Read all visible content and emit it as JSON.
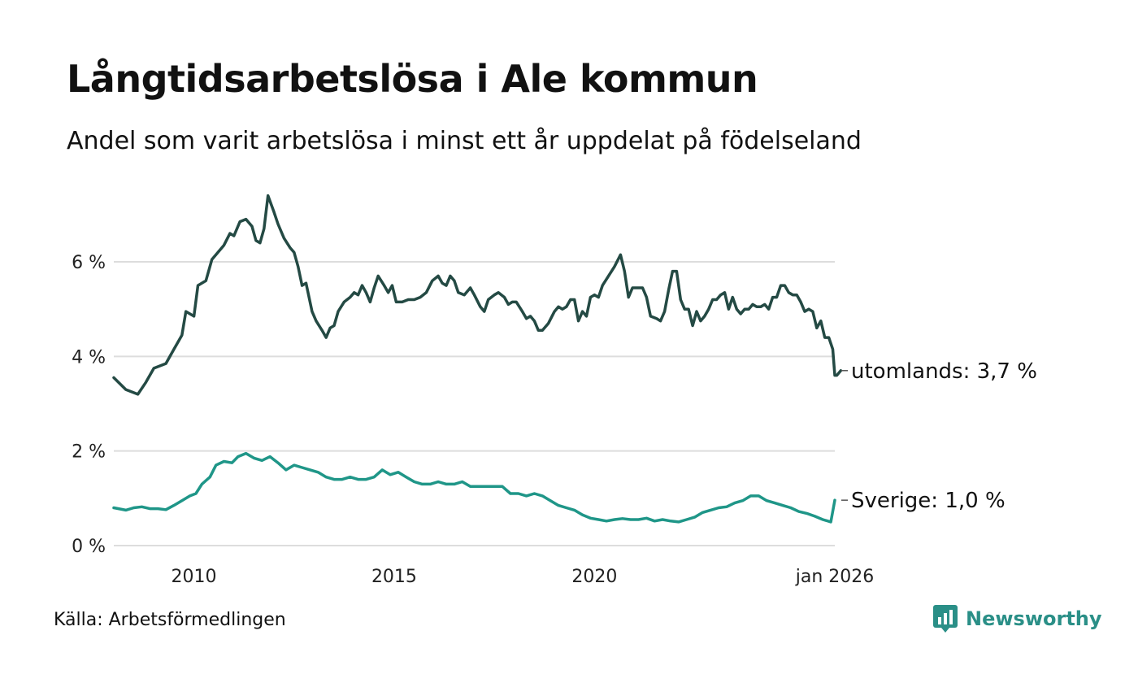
{
  "title": "Långtidsarbetslösa i Ale kommun",
  "subtitle": "Andel som varit arbetslösa i minst ett år uppdelat på födelseland",
  "source": "Källa: Arbetsförmedlingen",
  "brand": {
    "name": "Newsworthy",
    "icon": "newsworthy-logo-icon",
    "color": "#2a8f87"
  },
  "chart_data": {
    "type": "line",
    "title": "Långtidsarbetslösa i Ale kommun",
    "xlabel": "",
    "ylabel": "",
    "ylim": [
      0,
      7.5
    ],
    "xlim": [
      2008.0,
      2026.0
    ],
    "grid": true,
    "y_ticks": [
      {
        "value": 0,
        "label": "0 %"
      },
      {
        "value": 2,
        "label": "2 %"
      },
      {
        "value": 4,
        "label": "4 %"
      },
      {
        "value": 6,
        "label": "6 %"
      }
    ],
    "x_ticks": [
      {
        "value": 2010,
        "label": "2010"
      },
      {
        "value": 2015,
        "label": "2015"
      },
      {
        "value": 2020,
        "label": "2020"
      },
      {
        "value": 2026,
        "label": "jan 2026"
      }
    ],
    "series": [
      {
        "name": "utomlands",
        "end_label": "utomlands: 3,7 %",
        "color": "#244a44",
        "points": [
          [
            2008.0,
            3.55
          ],
          [
            2008.3,
            3.3
          ],
          [
            2008.45,
            3.25
          ],
          [
            2008.6,
            3.2
          ],
          [
            2008.8,
            3.45
          ],
          [
            2009.0,
            3.75
          ],
          [
            2009.3,
            3.85
          ],
          [
            2009.5,
            4.15
          ],
          [
            2009.7,
            4.45
          ],
          [
            2009.8,
            4.95
          ],
          [
            2010.0,
            4.85
          ],
          [
            2010.1,
            5.5
          ],
          [
            2010.3,
            5.6
          ],
          [
            2010.45,
            6.05
          ],
          [
            2010.6,
            6.2
          ],
          [
            2010.75,
            6.35
          ],
          [
            2010.9,
            6.6
          ],
          [
            2011.0,
            6.55
          ],
          [
            2011.15,
            6.85
          ],
          [
            2011.3,
            6.9
          ],
          [
            2011.45,
            6.75
          ],
          [
            2011.55,
            6.45
          ],
          [
            2011.65,
            6.4
          ],
          [
            2011.75,
            6.7
          ],
          [
            2011.85,
            7.4
          ],
          [
            2012.0,
            7.05
          ],
          [
            2012.1,
            6.8
          ],
          [
            2012.25,
            6.5
          ],
          [
            2012.4,
            6.3
          ],
          [
            2012.5,
            6.2
          ],
          [
            2012.6,
            5.9
          ],
          [
            2012.7,
            5.5
          ],
          [
            2012.8,
            5.55
          ],
          [
            2012.95,
            4.95
          ],
          [
            2013.05,
            4.75
          ],
          [
            2013.2,
            4.55
          ],
          [
            2013.3,
            4.4
          ],
          [
            2013.4,
            4.6
          ],
          [
            2013.5,
            4.65
          ],
          [
            2013.6,
            4.95
          ],
          [
            2013.75,
            5.15
          ],
          [
            2013.9,
            5.25
          ],
          [
            2014.0,
            5.35
          ],
          [
            2014.1,
            5.3
          ],
          [
            2014.2,
            5.5
          ],
          [
            2014.3,
            5.35
          ],
          [
            2014.4,
            5.15
          ],
          [
            2014.5,
            5.45
          ],
          [
            2014.6,
            5.7
          ],
          [
            2014.75,
            5.5
          ],
          [
            2014.85,
            5.35
          ],
          [
            2014.95,
            5.5
          ],
          [
            2015.05,
            5.15
          ],
          [
            2015.2,
            5.15
          ],
          [
            2015.35,
            5.2
          ],
          [
            2015.5,
            5.2
          ],
          [
            2015.65,
            5.25
          ],
          [
            2015.8,
            5.35
          ],
          [
            2015.95,
            5.6
          ],
          [
            2016.1,
            5.7
          ],
          [
            2016.2,
            5.55
          ],
          [
            2016.3,
            5.5
          ],
          [
            2016.4,
            5.7
          ],
          [
            2016.5,
            5.6
          ],
          [
            2016.6,
            5.35
          ],
          [
            2016.75,
            5.3
          ],
          [
            2016.9,
            5.45
          ],
          [
            2017.0,
            5.3
          ],
          [
            2017.15,
            5.05
          ],
          [
            2017.25,
            4.95
          ],
          [
            2017.35,
            5.2
          ],
          [
            2017.5,
            5.3
          ],
          [
            2017.6,
            5.35
          ],
          [
            2017.75,
            5.25
          ],
          [
            2017.85,
            5.1
          ],
          [
            2017.95,
            5.15
          ],
          [
            2018.05,
            5.15
          ],
          [
            2018.2,
            4.95
          ],
          [
            2018.3,
            4.8
          ],
          [
            2018.4,
            4.85
          ],
          [
            2018.5,
            4.75
          ],
          [
            2018.6,
            4.55
          ],
          [
            2018.7,
            4.55
          ],
          [
            2018.85,
            4.7
          ],
          [
            2019.0,
            4.95
          ],
          [
            2019.1,
            5.05
          ],
          [
            2019.2,
            5.0
          ],
          [
            2019.3,
            5.05
          ],
          [
            2019.4,
            5.2
          ],
          [
            2019.5,
            5.2
          ],
          [
            2019.6,
            4.75
          ],
          [
            2019.7,
            4.95
          ],
          [
            2019.8,
            4.85
          ],
          [
            2019.9,
            5.25
          ],
          [
            2020.0,
            5.3
          ],
          [
            2020.1,
            5.25
          ],
          [
            2020.2,
            5.5
          ],
          [
            2020.35,
            5.7
          ],
          [
            2020.5,
            5.9
          ],
          [
            2020.65,
            6.15
          ],
          [
            2020.75,
            5.8
          ],
          [
            2020.85,
            5.25
          ],
          [
            2020.95,
            5.45
          ],
          [
            2021.1,
            5.45
          ],
          [
            2021.2,
            5.45
          ],
          [
            2021.3,
            5.25
          ],
          [
            2021.4,
            4.85
          ],
          [
            2021.55,
            4.8
          ],
          [
            2021.65,
            4.75
          ],
          [
            2021.75,
            4.95
          ],
          [
            2021.85,
            5.4
          ],
          [
            2021.95,
            5.8
          ],
          [
            2022.05,
            5.8
          ],
          [
            2022.15,
            5.2
          ],
          [
            2022.25,
            5.0
          ],
          [
            2022.35,
            5.0
          ],
          [
            2022.45,
            4.65
          ],
          [
            2022.55,
            4.95
          ],
          [
            2022.65,
            4.75
          ],
          [
            2022.75,
            4.85
          ],
          [
            2022.85,
            5.0
          ],
          [
            2022.95,
            5.2
          ],
          [
            2023.05,
            5.2
          ],
          [
            2023.15,
            5.3
          ],
          [
            2023.25,
            5.35
          ],
          [
            2023.35,
            5.0
          ],
          [
            2023.45,
            5.25
          ],
          [
            2023.55,
            5.0
          ],
          [
            2023.65,
            4.9
          ],
          [
            2023.75,
            5.0
          ],
          [
            2023.85,
            5.0
          ],
          [
            2023.95,
            5.1
          ],
          [
            2024.05,
            5.05
          ],
          [
            2024.15,
            5.05
          ],
          [
            2024.25,
            5.1
          ],
          [
            2024.35,
            5.0
          ],
          [
            2024.45,
            5.25
          ],
          [
            2024.55,
            5.25
          ],
          [
            2024.65,
            5.5
          ],
          [
            2024.75,
            5.5
          ],
          [
            2024.85,
            5.35
          ],
          [
            2024.95,
            5.3
          ],
          [
            2025.05,
            5.3
          ],
          [
            2025.15,
            5.15
          ],
          [
            2025.25,
            4.95
          ],
          [
            2025.35,
            5.0
          ],
          [
            2025.45,
            4.95
          ],
          [
            2025.55,
            4.6
          ],
          [
            2025.65,
            4.75
          ],
          [
            2025.75,
            4.4
          ],
          [
            2025.85,
            4.4
          ],
          [
            2025.95,
            4.15
          ],
          [
            2026.0,
            3.6
          ],
          [
            2026.05,
            3.6
          ],
          [
            2026.15,
            3.7
          ]
        ]
      },
      {
        "name": "Sverige",
        "end_label": "Sverige: 1,0 %",
        "color": "#1f9688",
        "points": [
          [
            2008.0,
            0.8
          ],
          [
            2008.3,
            0.75
          ],
          [
            2008.5,
            0.8
          ],
          [
            2008.7,
            0.82
          ],
          [
            2008.9,
            0.78
          ],
          [
            2009.1,
            0.78
          ],
          [
            2009.3,
            0.76
          ],
          [
            2009.5,
            0.85
          ],
          [
            2009.7,
            0.95
          ],
          [
            2009.9,
            1.05
          ],
          [
            2010.05,
            1.1
          ],
          [
            2010.2,
            1.3
          ],
          [
            2010.4,
            1.45
          ],
          [
            2010.55,
            1.7
          ],
          [
            2010.75,
            1.78
          ],
          [
            2010.95,
            1.75
          ],
          [
            2011.1,
            1.88
          ],
          [
            2011.3,
            1.95
          ],
          [
            2011.5,
            1.85
          ],
          [
            2011.7,
            1.8
          ],
          [
            2011.9,
            1.88
          ],
          [
            2012.1,
            1.75
          ],
          [
            2012.3,
            1.6
          ],
          [
            2012.5,
            1.7
          ],
          [
            2012.7,
            1.65
          ],
          [
            2012.9,
            1.6
          ],
          [
            2013.1,
            1.55
          ],
          [
            2013.3,
            1.45
          ],
          [
            2013.5,
            1.4
          ],
          [
            2013.7,
            1.4
          ],
          [
            2013.9,
            1.45
          ],
          [
            2014.1,
            1.4
          ],
          [
            2014.3,
            1.4
          ],
          [
            2014.5,
            1.45
          ],
          [
            2014.7,
            1.6
          ],
          [
            2014.9,
            1.5
          ],
          [
            2015.1,
            1.55
          ],
          [
            2015.3,
            1.45
          ],
          [
            2015.5,
            1.35
          ],
          [
            2015.7,
            1.3
          ],
          [
            2015.9,
            1.3
          ],
          [
            2016.1,
            1.35
          ],
          [
            2016.3,
            1.3
          ],
          [
            2016.5,
            1.3
          ],
          [
            2016.7,
            1.35
          ],
          [
            2016.9,
            1.25
          ],
          [
            2017.1,
            1.25
          ],
          [
            2017.3,
            1.25
          ],
          [
            2017.5,
            1.25
          ],
          [
            2017.7,
            1.25
          ],
          [
            2017.9,
            1.1
          ],
          [
            2018.1,
            1.1
          ],
          [
            2018.3,
            1.05
          ],
          [
            2018.5,
            1.1
          ],
          [
            2018.7,
            1.05
          ],
          [
            2018.9,
            0.95
          ],
          [
            2019.1,
            0.85
          ],
          [
            2019.3,
            0.8
          ],
          [
            2019.5,
            0.75
          ],
          [
            2019.7,
            0.65
          ],
          [
            2019.9,
            0.58
          ],
          [
            2020.1,
            0.55
          ],
          [
            2020.3,
            0.52
          ],
          [
            2020.5,
            0.55
          ],
          [
            2020.7,
            0.57
          ],
          [
            2020.9,
            0.55
          ],
          [
            2021.1,
            0.55
          ],
          [
            2021.3,
            0.58
          ],
          [
            2021.5,
            0.52
          ],
          [
            2021.7,
            0.55
          ],
          [
            2021.9,
            0.52
          ],
          [
            2022.1,
            0.5
          ],
          [
            2022.3,
            0.55
          ],
          [
            2022.5,
            0.6
          ],
          [
            2022.7,
            0.7
          ],
          [
            2022.9,
            0.75
          ],
          [
            2023.1,
            0.8
          ],
          [
            2023.3,
            0.82
          ],
          [
            2023.5,
            0.9
          ],
          [
            2023.7,
            0.95
          ],
          [
            2023.9,
            1.05
          ],
          [
            2024.1,
            1.05
          ],
          [
            2024.3,
            0.95
          ],
          [
            2024.5,
            0.9
          ],
          [
            2024.7,
            0.85
          ],
          [
            2024.9,
            0.8
          ],
          [
            2025.1,
            0.72
          ],
          [
            2025.3,
            0.68
          ],
          [
            2025.5,
            0.62
          ],
          [
            2025.7,
            0.55
          ],
          [
            2025.9,
            0.5
          ],
          [
            2026.0,
            0.96
          ]
        ]
      }
    ]
  }
}
